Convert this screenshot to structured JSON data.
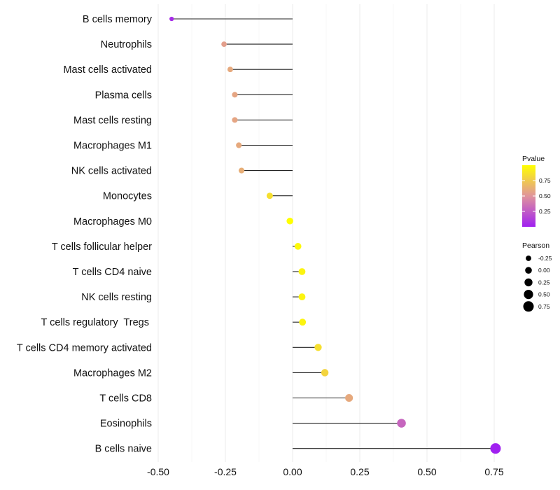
{
  "chart_data": {
    "type": "lollipop",
    "title": "",
    "xlabel": "",
    "ylabel": "",
    "xlim": [
      -0.5,
      0.75
    ],
    "x_ticks": [
      -0.5,
      -0.25,
      0.0,
      0.25,
      0.5,
      0.75
    ],
    "x_tick_labels": [
      "-0.50",
      "-0.25",
      "0.00",
      "0.25",
      "0.50",
      "0.75"
    ],
    "grid": true,
    "baseline": 0,
    "categories": [
      "B cells memory",
      "Neutrophils",
      "Mast cells activated",
      "Plasma cells",
      "Mast cells resting",
      "Macrophages M1",
      "NK cells activated",
      "Monocytes",
      "Macrophages M0",
      "T cells follicular helper",
      "T cells CD4 naive",
      "NK cells resting",
      "T cells regulatory  Tregs ",
      "T cells CD4 memory activated",
      "Macrophages M2",
      "T cells CD8",
      "Eosinophils",
      "B cells naive"
    ],
    "pearson": [
      -0.45,
      -0.255,
      -0.232,
      -0.215,
      -0.215,
      -0.2,
      -0.19,
      -0.085,
      -0.01,
      0.02,
      0.035,
      0.035,
      0.037,
      0.095,
      0.12,
      0.21,
      0.405,
      0.755
    ],
    "pvalue": [
      0.05,
      0.55,
      0.6,
      0.58,
      0.58,
      0.6,
      0.62,
      0.85,
      1.0,
      0.97,
      0.95,
      0.95,
      0.95,
      0.85,
      0.8,
      0.6,
      0.3,
      0.001
    ],
    "legend_color": {
      "title": "Pvalue",
      "ticks": [
        0.25,
        0.5,
        0.75
      ],
      "tick_labels": [
        "0.25",
        "0.50",
        "0.75"
      ],
      "range": [
        0,
        1
      ],
      "color_low": "#a020f0",
      "color_mid": "#e0949c",
      "color_high": "#ffff00",
      "position": "right"
    },
    "legend_size": {
      "title": "Pearson",
      "values": [
        -0.25,
        0.0,
        0.25,
        0.5,
        0.75
      ],
      "labels": [
        "-0.25",
        "0.00",
        "0.25",
        "0.50",
        "0.75"
      ],
      "color": "#000000",
      "position": "right"
    }
  }
}
